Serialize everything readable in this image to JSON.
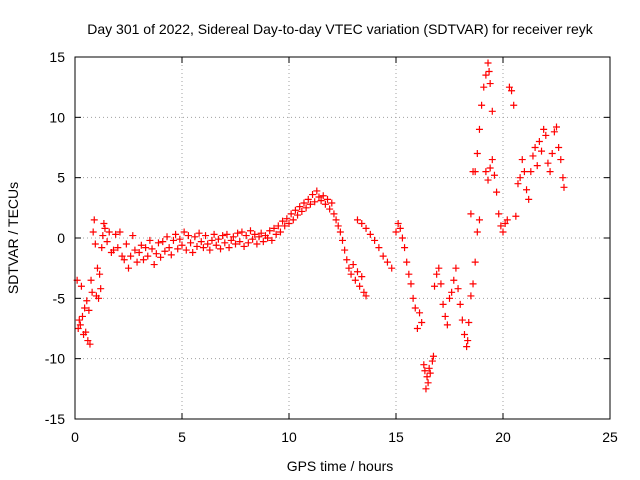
{
  "chart_data": {
    "type": "scatter",
    "title": "Day 301 of 2022, Sidereal Day-to-day VTEC variation (SDTVAR) for receiver reyk",
    "xlabel": "GPS time / hours",
    "ylabel": "SDTVAR / TECUs",
    "xlim": [
      0,
      25
    ],
    "ylim": [
      -15,
      15
    ],
    "xticks": [
      0,
      5,
      10,
      15,
      20,
      25
    ],
    "yticks": [
      -15,
      -10,
      -5,
      0,
      5,
      10,
      15
    ],
    "xtick_labels": [
      "0",
      "5",
      "10",
      "15",
      "20",
      "25"
    ],
    "ytick_labels": [
      "-15",
      "-10",
      "-5",
      "0",
      "5",
      "10",
      "15"
    ],
    "grid": true,
    "marker": "+",
    "color": "#ff0000",
    "series": [
      {
        "name": "reyk",
        "points": [
          [
            0.1,
            -3.5
          ],
          [
            0.15,
            -7.5
          ],
          [
            0.2,
            -6.8
          ],
          [
            0.25,
            -7.2
          ],
          [
            0.3,
            -4.0
          ],
          [
            0.35,
            -6.5
          ],
          [
            0.4,
            -8.0
          ],
          [
            0.45,
            -5.8
          ],
          [
            0.5,
            -7.8
          ],
          [
            0.55,
            -5.2
          ],
          [
            0.6,
            -8.5
          ],
          [
            0.65,
            -6.0
          ],
          [
            0.7,
            -8.8
          ],
          [
            0.75,
            -3.5
          ],
          [
            0.8,
            -4.5
          ],
          [
            0.85,
            0.5
          ],
          [
            0.9,
            1.5
          ],
          [
            0.95,
            -0.5
          ],
          [
            1.0,
            -4.8
          ],
          [
            1.05,
            -2.5
          ],
          [
            1.1,
            -5.0
          ],
          [
            1.15,
            -3.0
          ],
          [
            1.2,
            -4.2
          ],
          [
            1.25,
            -0.8
          ],
          [
            1.3,
            0.2
          ],
          [
            1.35,
            1.2
          ],
          [
            1.4,
            0.8
          ],
          [
            1.5,
            -0.3
          ],
          [
            1.6,
            0.5
          ],
          [
            1.7,
            -1.2
          ],
          [
            1.8,
            -1.0
          ],
          [
            1.9,
            0.3
          ],
          [
            2.0,
            -0.8
          ],
          [
            2.1,
            0.5
          ],
          [
            2.2,
            -1.5
          ],
          [
            2.3,
            -1.8
          ],
          [
            2.4,
            -0.5
          ],
          [
            2.5,
            -2.5
          ],
          [
            2.6,
            -1.5
          ],
          [
            2.7,
            0.2
          ],
          [
            2.8,
            -1.0
          ],
          [
            2.9,
            -2.0
          ],
          [
            3.0,
            -1.2
          ],
          [
            3.1,
            -0.6
          ],
          [
            3.2,
            -1.8
          ],
          [
            3.3,
            -0.8
          ],
          [
            3.4,
            -1.5
          ],
          [
            3.5,
            -0.2
          ],
          [
            3.6,
            -0.9
          ],
          [
            3.7,
            -2.2
          ],
          [
            3.8,
            -1.3
          ],
          [
            3.9,
            -0.4
          ],
          [
            4.0,
            -1.6
          ],
          [
            4.1,
            -0.3
          ],
          [
            4.2,
            -1.1
          ],
          [
            4.3,
            0.1
          ],
          [
            4.4,
            -0.8
          ],
          [
            4.5,
            -1.4
          ],
          [
            4.6,
            -0.2
          ],
          [
            4.7,
            0.3
          ],
          [
            4.8,
            -0.9
          ],
          [
            4.9,
            -0.1
          ],
          [
            5.0,
            -0.6
          ],
          [
            5.1,
            0.5
          ],
          [
            5.2,
            -1.0
          ],
          [
            5.3,
            0.2
          ],
          [
            5.4,
            -0.4
          ],
          [
            5.5,
            -1.2
          ],
          [
            5.6,
            0.1
          ],
          [
            5.7,
            -0.7
          ],
          [
            5.8,
            0.4
          ],
          [
            5.9,
            -0.3
          ],
          [
            6.0,
            -0.8
          ],
          [
            6.1,
            0.2
          ],
          [
            6.2,
            -0.5
          ],
          [
            6.3,
            -1.0
          ],
          [
            6.4,
            -0.2
          ],
          [
            6.5,
            0.3
          ],
          [
            6.6,
            -0.6
          ],
          [
            6.7,
            -0.1
          ],
          [
            6.8,
            -0.9
          ],
          [
            6.9,
            0.2
          ],
          [
            7.0,
            -0.4
          ],
          [
            7.1,
            0.3
          ],
          [
            7.2,
            -0.8
          ],
          [
            7.3,
            -0.2
          ],
          [
            7.4,
            0.1
          ],
          [
            7.5,
            -0.5
          ],
          [
            7.6,
            0.4
          ],
          [
            7.7,
            -0.3
          ],
          [
            7.8,
            0.5
          ],
          [
            7.9,
            -0.7
          ],
          [
            8.0,
            0.2
          ],
          [
            8.1,
            -0.4
          ],
          [
            8.2,
            0.6
          ],
          [
            8.3,
            -0.1
          ],
          [
            8.4,
            0.3
          ],
          [
            8.5,
            -0.5
          ],
          [
            8.6,
            0.1
          ],
          [
            8.7,
            0.4
          ],
          [
            8.8,
            -0.3
          ],
          [
            8.9,
            0.2
          ],
          [
            9.0,
            0.0
          ],
          [
            9.1,
            0.6
          ],
          [
            9.2,
            -0.2
          ],
          [
            9.3,
            0.8
          ],
          [
            9.4,
            0.3
          ],
          [
            9.5,
            1.0
          ],
          [
            9.6,
            0.5
          ],
          [
            9.7,
            1.4
          ],
          [
            9.8,
            1.0
          ],
          [
            9.9,
            1.6
          ],
          [
            10.0,
            1.2
          ],
          [
            10.1,
            2.0
          ],
          [
            10.2,
            1.5
          ],
          [
            10.3,
            2.3
          ],
          [
            10.4,
            1.9
          ],
          [
            10.5,
            2.6
          ],
          [
            10.6,
            2.2
          ],
          [
            10.7,
            2.9
          ],
          [
            10.8,
            2.5
          ],
          [
            10.9,
            3.2
          ],
          [
            11.0,
            2.8
          ],
          [
            11.1,
            3.6
          ],
          [
            11.2,
            3.0
          ],
          [
            11.3,
            3.9
          ],
          [
            11.4,
            3.4
          ],
          [
            11.5,
            3.1
          ],
          [
            11.6,
            3.5
          ],
          [
            11.7,
            2.8
          ],
          [
            11.8,
            3.2
          ],
          [
            11.9,
            2.4
          ],
          [
            12.0,
            2.9
          ],
          [
            12.1,
            2.0
          ],
          [
            12.2,
            1.5
          ],
          [
            12.3,
            1.0
          ],
          [
            12.4,
            0.5
          ],
          [
            12.5,
            -0.2
          ],
          [
            12.6,
            -1.0
          ],
          [
            12.7,
            -1.8
          ],
          [
            12.8,
            -2.5
          ],
          [
            12.9,
            -3.0
          ],
          [
            13.0,
            -2.2
          ],
          [
            13.1,
            -3.5
          ],
          [
            13.2,
            -2.8
          ],
          [
            13.3,
            -4.0
          ],
          [
            13.4,
            -3.2
          ],
          [
            13.5,
            -4.5
          ],
          [
            13.6,
            -4.8
          ],
          [
            13.2,
            1.5
          ],
          [
            13.4,
            1.2
          ],
          [
            13.6,
            0.8
          ],
          [
            13.8,
            0.3
          ],
          [
            14.0,
            -0.2
          ],
          [
            14.2,
            -0.8
          ],
          [
            14.4,
            -1.5
          ],
          [
            14.6,
            -2.0
          ],
          [
            14.8,
            -2.5
          ],
          [
            15.0,
            0.5
          ],
          [
            15.1,
            1.2
          ],
          [
            15.2,
            0.8
          ],
          [
            15.3,
            0.0
          ],
          [
            15.4,
            -0.8
          ],
          [
            15.5,
            -2.0
          ],
          [
            15.6,
            -3.0
          ],
          [
            15.7,
            -3.8
          ],
          [
            15.8,
            -5.0
          ],
          [
            15.9,
            -5.8
          ],
          [
            16.0,
            -7.5
          ],
          [
            16.1,
            -6.2
          ],
          [
            16.2,
            -7.0
          ],
          [
            16.3,
            -10.5
          ],
          [
            16.35,
            -11.0
          ],
          [
            16.4,
            -12.5
          ],
          [
            16.45,
            -11.5
          ],
          [
            16.5,
            -12.0
          ],
          [
            16.55,
            -10.8
          ],
          [
            16.6,
            -11.2
          ],
          [
            16.7,
            -10.2
          ],
          [
            16.75,
            -9.8
          ],
          [
            16.8,
            -4.0
          ],
          [
            16.9,
            -3.0
          ],
          [
            17.0,
            -2.5
          ],
          [
            17.1,
            -3.8
          ],
          [
            17.2,
            -5.5
          ],
          [
            17.3,
            -6.5
          ],
          [
            17.4,
            -7.2
          ],
          [
            17.5,
            -5.0
          ],
          [
            17.6,
            -4.5
          ],
          [
            17.7,
            -3.5
          ],
          [
            17.8,
            -2.5
          ],
          [
            17.9,
            -4.2
          ],
          [
            18.0,
            -5.5
          ],
          [
            18.1,
            -6.8
          ],
          [
            18.2,
            -8.0
          ],
          [
            18.3,
            -9.0
          ],
          [
            18.35,
            -8.5
          ],
          [
            18.4,
            -7.0
          ],
          [
            18.5,
            -4.8
          ],
          [
            18.6,
            -3.8
          ],
          [
            18.7,
            -2.0
          ],
          [
            18.8,
            0.5
          ],
          [
            18.9,
            1.5
          ],
          [
            18.5,
            2.0
          ],
          [
            18.6,
            5.5
          ],
          [
            18.7,
            5.5
          ],
          [
            18.8,
            7.0
          ],
          [
            18.9,
            9.0
          ],
          [
            19.0,
            11.0
          ],
          [
            19.1,
            12.5
          ],
          [
            19.2,
            13.5
          ],
          [
            19.3,
            14.5
          ],
          [
            19.35,
            13.8
          ],
          [
            19.4,
            12.8
          ],
          [
            19.5,
            10.5
          ],
          [
            19.2,
            5.5
          ],
          [
            19.3,
            4.8
          ],
          [
            19.4,
            5.8
          ],
          [
            19.5,
            6.5
          ],
          [
            19.6,
            5.2
          ],
          [
            19.7,
            3.8
          ],
          [
            19.8,
            2.0
          ],
          [
            19.9,
            1.0
          ],
          [
            20.0,
            0.5
          ],
          [
            20.1,
            1.2
          ],
          [
            20.2,
            1.5
          ],
          [
            20.3,
            12.5
          ],
          [
            20.4,
            12.2
          ],
          [
            20.5,
            11.0
          ],
          [
            20.6,
            1.8
          ],
          [
            20.7,
            4.5
          ],
          [
            20.8,
            5.0
          ],
          [
            20.9,
            6.5
          ],
          [
            21.0,
            5.5
          ],
          [
            21.1,
            4.0
          ],
          [
            21.2,
            3.2
          ],
          [
            21.3,
            5.5
          ],
          [
            21.4,
            6.8
          ],
          [
            21.5,
            7.5
          ],
          [
            21.6,
            6.0
          ],
          [
            21.7,
            8.0
          ],
          [
            21.8,
            7.2
          ],
          [
            21.9,
            9.0
          ],
          [
            22.0,
            8.5
          ],
          [
            22.1,
            6.2
          ],
          [
            22.2,
            5.5
          ],
          [
            22.3,
            7.0
          ],
          [
            22.4,
            8.8
          ],
          [
            22.5,
            9.2
          ],
          [
            22.6,
            7.5
          ],
          [
            22.7,
            6.5
          ],
          [
            22.8,
            5.0
          ],
          [
            22.85,
            4.2
          ]
        ]
      }
    ]
  }
}
